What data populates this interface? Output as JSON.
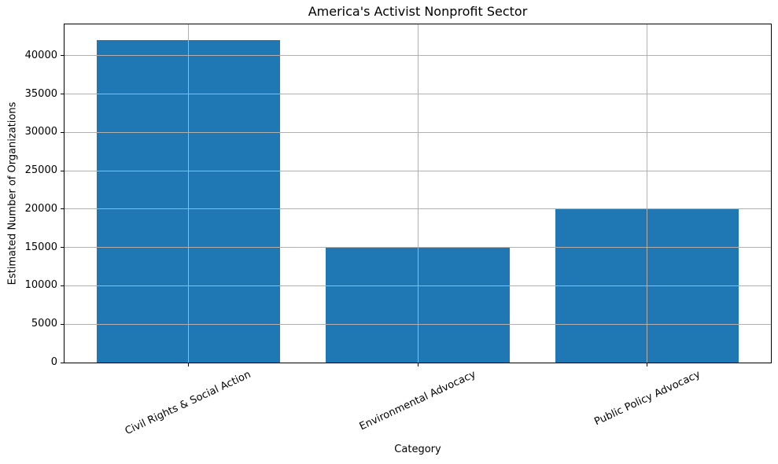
{
  "chart_data": {
    "type": "bar",
    "title": "America's Activist Nonprofit Sector",
    "xlabel": "Category",
    "ylabel": "Estimated Number of Organizations",
    "categories": [
      "Civil Rights & Social Action",
      "Environmental Advocacy",
      "Public Policy Advocacy"
    ],
    "values": [
      42000,
      15000,
      20000
    ],
    "yticks": [
      0,
      5000,
      10000,
      15000,
      20000,
      25000,
      30000,
      35000,
      40000
    ],
    "ylim": [
      0,
      44100
    ],
    "bar_color": "#1f77b4",
    "grid": true,
    "grid_color": "#b0b0b0",
    "background_color": "#ffffff",
    "x_tick_rotation_deg": 25
  }
}
